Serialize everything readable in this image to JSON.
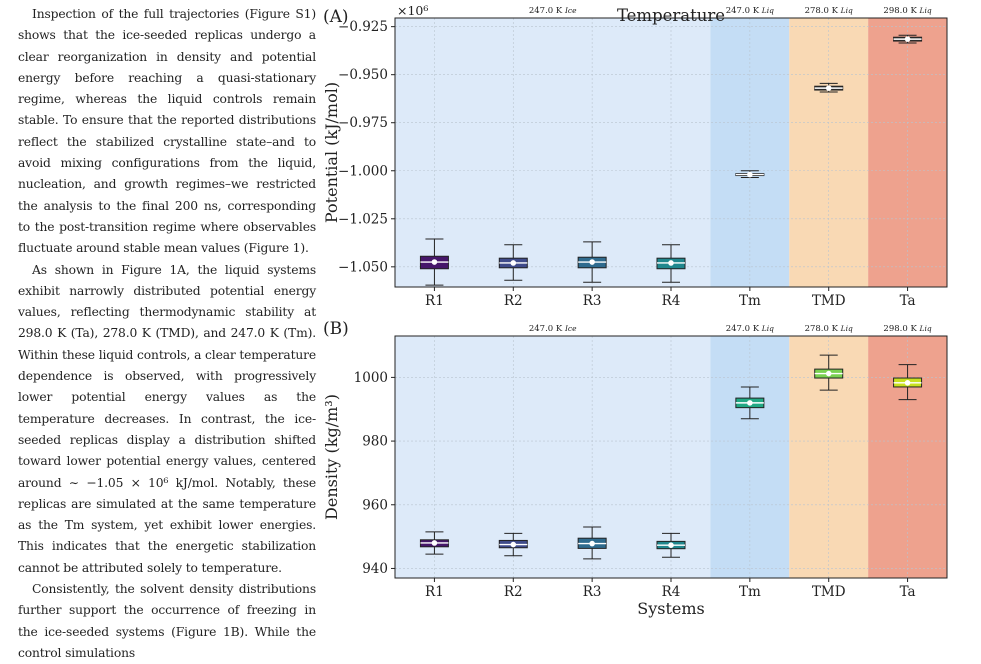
{
  "paragraphs": [
    "Inspection of the full trajectories (Figure S1) shows that the ice-seeded replicas undergo a clear reorganization in density and potential energy before reaching a quasi-stationary regime, whereas the liquid controls remain stable. To ensure that the reported distributions reflect the stabilized crystalline state–and to avoid mixing configurations from the liquid, nucleation, and growth regimes–we restricted the analysis to the final 200 ns, corresponding to the post-transition regime where observables fluctuate around stable mean values (Figure 1).",
    "As shown in Figure 1A, the liquid systems exhibit narrowly distributed potential energy values, reflecting thermodynamic stability at 298.0 K (Ta), 278.0 K (TMD), and 247.0 K (Tm). Within these liquid controls, a clear temperature dependence is observed, with progressively lower potential energy values as the temperature decreases. In contrast, the ice-seeded replicas display a distribution shifted toward lower potential energy values, centered around ∼ −1.05 × 10⁶ kJ/mol. Notably, these replicas are simulated at the same temperature as the Tm system, yet exhibit lower energies. This indicates that the energetic stabilization cannot be attributed solely to temperature.",
    "Consistently, the solvent density distributions further support the occurrence of freezing in the ice-seeded systems (Figure 1B). While the control simulations"
  ],
  "chart_data": [
    {
      "type": "box",
      "panel": "(A)",
      "title": "Temperature",
      "ylabel": "Potential (kJ/mol)",
      "xlabel": "",
      "offset_label": "×10⁶",
      "ylim": [
        -1.0605,
        -0.9205
      ],
      "yticks": [
        -0.925,
        -0.95,
        -0.975,
        -1.0,
        -1.025,
        -1.05
      ],
      "ytick_labels": [
        "−0.925",
        "−0.950",
        "−0.975",
        "−1.000",
        "−1.025",
        "−1.050"
      ],
      "categories": [
        "R1",
        "R2",
        "R3",
        "R4",
        "Tm",
        "TMD",
        "Ta"
      ],
      "colors": [
        "#46176a",
        "#3f4b8a",
        "#2f6b8e",
        "#20878d",
        "#333333",
        "#333333",
        "#333333"
      ],
      "boxes": [
        {
          "whislo": -1.0595,
          "q1": -1.051,
          "med": -1.0475,
          "mean": -1.0475,
          "q3": -1.0445,
          "whishi": -1.0355
        },
        {
          "whislo": -1.057,
          "q1": -1.0505,
          "med": -1.048,
          "mean": -1.048,
          "q3": -1.0455,
          "whishi": -1.0385
        },
        {
          "whislo": -1.058,
          "q1": -1.0505,
          "med": -1.0475,
          "mean": -1.0475,
          "q3": -1.045,
          "whishi": -1.037
        },
        {
          "whislo": -1.058,
          "q1": -1.051,
          "med": -1.048,
          "mean": -1.048,
          "q3": -1.0455,
          "whishi": -1.0385
        },
        {
          "whislo": -1.0035,
          "q1": -1.0025,
          "med": -1.002,
          "mean": -1.002,
          "q3": -1.0015,
          "whishi": -1.0
        },
        {
          "whislo": -0.959,
          "q1": -0.958,
          "med": -0.957,
          "mean": -0.957,
          "q3": -0.956,
          "whishi": -0.9545
        },
        {
          "whislo": -0.9335,
          "q1": -0.9325,
          "med": -0.9315,
          "mean": -0.9315,
          "q3": -0.9305,
          "whishi": -0.9295
        }
      ],
      "regions": [
        {
          "label": "247.0 K",
          "sub": "Ice",
          "from": 0,
          "to": 3,
          "color": "#ddeaf9"
        },
        {
          "label": "247.0 K",
          "sub": "Liq",
          "from": 4,
          "to": 4,
          "color": "#c4ddf5"
        },
        {
          "label": "278.0 K",
          "sub": "Liq",
          "from": 5,
          "to": 5,
          "color": "#f9d9b4"
        },
        {
          "label": "298.0 K",
          "sub": "Liq",
          "from": 6,
          "to": 6,
          "color": "#eea28e"
        }
      ]
    },
    {
      "type": "box",
      "panel": "(B)",
      "title": "",
      "ylabel": "Density (kg/m³)",
      "xlabel": "Systems",
      "offset_label": "",
      "ylim": [
        937,
        1013
      ],
      "yticks": [
        940,
        960,
        980,
        1000
      ],
      "ytick_labels": [
        "940",
        "960",
        "980",
        "1000"
      ],
      "categories": [
        "R1",
        "R2",
        "R3",
        "R4",
        "Tm",
        "TMD",
        "Ta"
      ],
      "colors": [
        "#46176a",
        "#3f4b8a",
        "#2f6b8e",
        "#20878d",
        "#22a884",
        "#7ad151",
        "#c8e020"
      ],
      "boxes": [
        {
          "whislo": 944.5,
          "q1": 946.8,
          "med": 948.0,
          "mean": 948.0,
          "q3": 949.0,
          "whishi": 951.5
        },
        {
          "whislo": 944.0,
          "q1": 946.5,
          "med": 947.5,
          "mean": 947.5,
          "q3": 948.8,
          "whishi": 951.0
        },
        {
          "whislo": 943.0,
          "q1": 946.3,
          "med": 947.8,
          "mean": 947.8,
          "q3": 949.5,
          "whishi": 953.0
        },
        {
          "whislo": 943.5,
          "q1": 946.2,
          "med": 947.3,
          "mean": 947.3,
          "q3": 948.5,
          "whishi": 951.0
        },
        {
          "whislo": 987.0,
          "q1": 990.5,
          "med": 992.0,
          "mean": 992.0,
          "q3": 993.5,
          "whishi": 997.0
        },
        {
          "whislo": 996.0,
          "q1": 999.8,
          "med": 1001.2,
          "mean": 1001.2,
          "q3": 1002.6,
          "whishi": 1007.0
        },
        {
          "whislo": 993.0,
          "q1": 997.0,
          "med": 998.3,
          "mean": 998.3,
          "q3": 999.8,
          "whishi": 1004.0
        }
      ],
      "regions": [
        {
          "label": "247.0 K",
          "sub": "Ice",
          "from": 0,
          "to": 3,
          "color": "#ddeaf9"
        },
        {
          "label": "247.0 K",
          "sub": "Liq",
          "from": 4,
          "to": 4,
          "color": "#c4ddf5"
        },
        {
          "label": "278.0 K",
          "sub": "Liq",
          "from": 5,
          "to": 5,
          "color": "#f9d9b4"
        },
        {
          "label": "298.0 K",
          "sub": "Liq",
          "from": 6,
          "to": 6,
          "color": "#eea28e"
        }
      ]
    }
  ]
}
